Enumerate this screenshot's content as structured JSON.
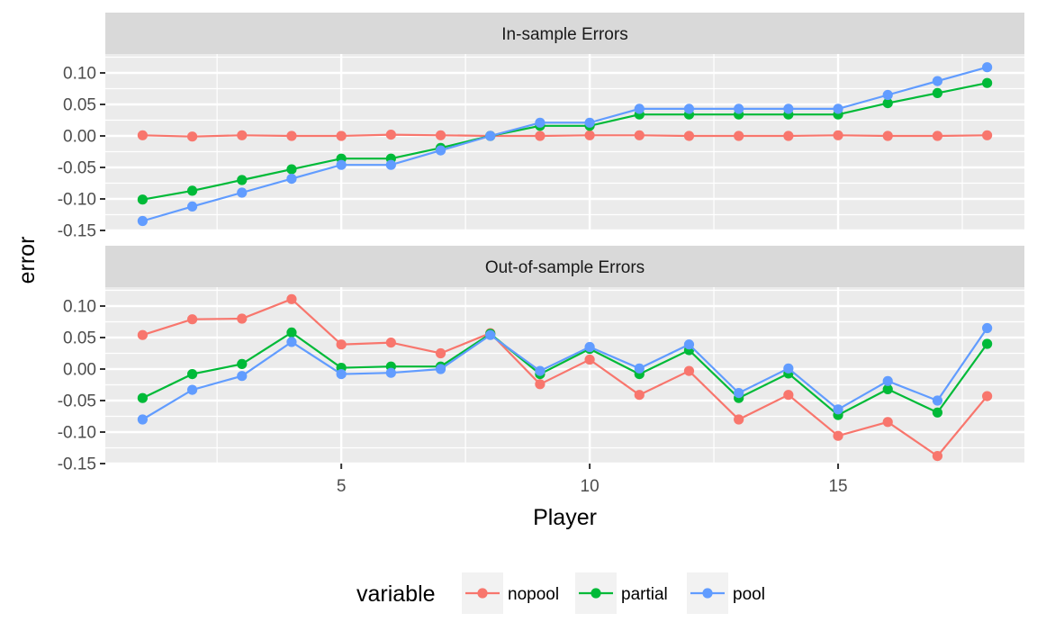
{
  "chart_data": {
    "type": "line",
    "xlabel": "Player",
    "ylabel": "error",
    "xlim": [
      0.25,
      18.75
    ],
    "ylim": [
      -0.15,
      0.13
    ],
    "x_ticks": [
      5,
      10,
      15
    ],
    "x_tick_labels": [
      "5",
      "10",
      "15"
    ],
    "y_ticks": [
      -0.15,
      -0.1,
      -0.05,
      0.0,
      0.05,
      0.1
    ],
    "y_tick_labels": [
      "-0.15",
      "-0.10",
      "-0.05",
      "0.00",
      "0.05",
      "0.10"
    ],
    "grid": true,
    "legend": {
      "title": "variable",
      "position": "bottom",
      "entries": [
        "nopool",
        "partial",
        "pool"
      ]
    },
    "colors": {
      "nopool": "#F8766D",
      "partial": "#00BA38",
      "pool": "#619CFF",
      "panel_bg": "#EBEBEB",
      "strip_bg": "#D9D9D9"
    },
    "x": [
      1,
      2,
      3,
      4,
      5,
      6,
      7,
      8,
      9,
      10,
      11,
      12,
      13,
      14,
      15,
      16,
      17,
      18
    ],
    "panels": [
      {
        "title": "In-sample Errors",
        "series": [
          {
            "name": "nopool",
            "values": [
              0.001,
              -0.001,
              0.001,
              0.0,
              0.0,
              0.002,
              0.001,
              0.0,
              0.0,
              0.001,
              0.001,
              0.0,
              0.0,
              0.0,
              0.001,
              0.0,
              0.0,
              0.001
            ]
          },
          {
            "name": "partial",
            "values": [
              -0.101,
              -0.087,
              -0.07,
              -0.053,
              -0.036,
              -0.036,
              -0.019,
              0.0,
              0.016,
              0.016,
              0.034,
              0.034,
              0.034,
              0.034,
              0.034,
              0.052,
              0.068,
              0.084
            ]
          },
          {
            "name": "pool",
            "values": [
              -0.135,
              -0.112,
              -0.09,
              -0.068,
              -0.046,
              -0.046,
              -0.023,
              0.0,
              0.021,
              0.021,
              0.043,
              0.043,
              0.043,
              0.043,
              0.043,
              0.065,
              0.087,
              0.109
            ]
          }
        ]
      },
      {
        "title": "Out-of-sample Errors",
        "series": [
          {
            "name": "nopool",
            "values": [
              0.054,
              0.079,
              0.08,
              0.111,
              0.039,
              0.042,
              0.025,
              0.057,
              -0.024,
              0.015,
              -0.041,
              -0.003,
              -0.08,
              -0.041,
              -0.106,
              -0.084,
              -0.138,
              -0.043
            ]
          },
          {
            "name": "partial",
            "values": [
              -0.046,
              -0.008,
              0.008,
              0.058,
              0.002,
              0.004,
              0.004,
              0.056,
              -0.008,
              0.032,
              -0.008,
              0.03,
              -0.046,
              -0.007,
              -0.073,
              -0.032,
              -0.069,
              0.04
            ]
          },
          {
            "name": "pool",
            "values": [
              -0.08,
              -0.033,
              -0.011,
              0.043,
              -0.008,
              -0.006,
              0.0,
              0.054,
              -0.003,
              0.035,
              0.001,
              0.039,
              -0.038,
              0.001,
              -0.064,
              -0.019,
              -0.05,
              0.065
            ]
          }
        ]
      }
    ]
  }
}
